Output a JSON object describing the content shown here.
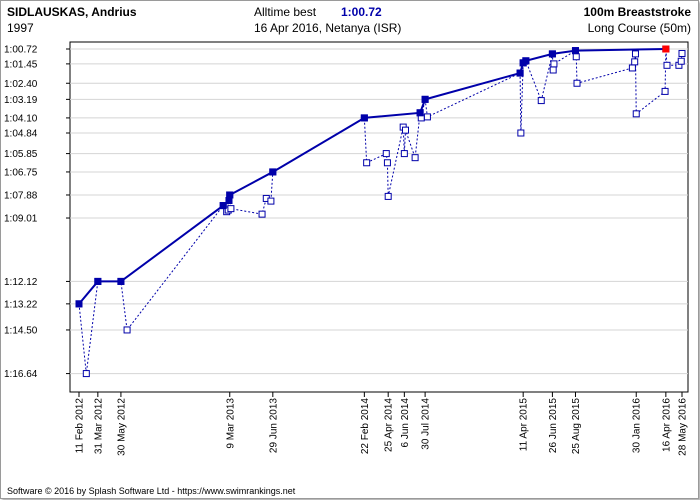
{
  "header": {
    "swimmer": "SIDLAUSKAS, Andrius",
    "birth_year": "1997",
    "alltime_label": "Alltime best",
    "alltime_value": "1:00.72",
    "alltime_meet": "16 Apr 2016,  Netanya (ISR)",
    "event": "100m Breaststroke",
    "course": "Long Course (50m)"
  },
  "footer": {
    "credit": "Software © 2016 by Splash Software Ltd  -  https://www.swimrankings.net"
  },
  "colors": {
    "best_line": "#0000aa",
    "swims": "#0000aa",
    "alltime_marker": "#ff0000",
    "grid": "#d4d4d4"
  },
  "chart_data": {
    "type": "line",
    "title": "",
    "xlabel": "",
    "ylabel": "",
    "y_reversed": true,
    "ylim": [
      60.72,
      77.2
    ],
    "xlim": [
      "2012-02-11",
      "2016-05-28"
    ],
    "grid": "horizontal",
    "y_ticks": [
      "1:00.72",
      "1:01.45",
      "1:02.40",
      "1:03.19",
      "1:04.10",
      "1:04.84",
      "1:05.85",
      "1:06.75",
      "1:07.88",
      "1:09.01",
      "1:12.12",
      "1:13.22",
      "1:14.50",
      "1:16.64"
    ],
    "x_ticks": [
      {
        "date": "2012-02-11",
        "label": "11 Feb 2012"
      },
      {
        "date": "2012-03-31",
        "label": "31 Mar 2012"
      },
      {
        "date": "2012-05-30",
        "label": "30 May 2012"
      },
      {
        "date": "2013-03-09",
        "label": "9 Mar 2013"
      },
      {
        "date": "2013-06-29",
        "label": "29 Jun 2013"
      },
      {
        "date": "2014-02-22",
        "label": "22 Feb 2014"
      },
      {
        "date": "2014-04-25",
        "label": "25 Apr 2014"
      },
      {
        "date": "2014-06-06",
        "label": "6 Jun 2014"
      },
      {
        "date": "2014-07-30",
        "label": "30 Jul 2014"
      },
      {
        "date": "2015-04-11",
        "label": "11 Apr 2015"
      },
      {
        "date": "2015-06-26",
        "label": "26 Jun 2015"
      },
      {
        "date": "2015-08-25",
        "label": "25 Aug 2015"
      },
      {
        "date": "2016-01-30",
        "label": "30 Jan 2016"
      },
      {
        "date": "2016-04-16",
        "label": "16 Apr 2016"
      },
      {
        "date": "2016-05-28",
        "label": "28 May 2016"
      }
    ],
    "personal_best": [
      {
        "date": "2012-02-11",
        "time": 73.22
      },
      {
        "date": "2012-03-31",
        "time": 72.12
      },
      {
        "date": "2012-05-30",
        "time": 72.12
      },
      {
        "date": "2013-02-20",
        "time": 68.4
      },
      {
        "date": "2013-03-07",
        "time": 68.15
      },
      {
        "date": "2013-03-09",
        "time": 67.88
      },
      {
        "date": "2013-06-29",
        "time": 66.75
      },
      {
        "date": "2014-02-22",
        "time": 64.1
      },
      {
        "date": "2014-07-17",
        "time": 63.85
      },
      {
        "date": "2014-07-30",
        "time": 63.19
      },
      {
        "date": "2015-04-03",
        "time": 61.9
      },
      {
        "date": "2015-04-11",
        "time": 61.4
      },
      {
        "date": "2015-04-18",
        "time": 61.3
      },
      {
        "date": "2015-06-26",
        "time": 60.96
      },
      {
        "date": "2015-08-25",
        "time": 60.8
      },
      {
        "date": "2016-04-16",
        "time": 60.72
      }
    ],
    "all_swims": [
      {
        "date": "2012-02-11",
        "time": 73.22
      },
      {
        "date": "2012-03-01",
        "time": 76.64
      },
      {
        "date": "2012-03-31",
        "time": 72.12
      },
      {
        "date": "2012-05-30",
        "time": 72.12
      },
      {
        "date": "2012-06-15",
        "time": 74.5
      },
      {
        "date": "2013-02-20",
        "time": 68.4
      },
      {
        "date": "2013-03-07",
        "time": 68.15
      },
      {
        "date": "2013-03-01",
        "time": 68.7
      },
      {
        "date": "2013-03-05",
        "time": 68.62
      },
      {
        "date": "2013-03-09",
        "time": 67.88
      },
      {
        "date": "2013-03-12",
        "time": 68.55
      },
      {
        "date": "2013-06-01",
        "time": 68.82
      },
      {
        "date": "2013-06-12",
        "time": 68.05
      },
      {
        "date": "2013-06-24",
        "time": 68.18
      },
      {
        "date": "2013-06-29",
        "time": 66.75
      },
      {
        "date": "2014-02-22",
        "time": 64.1
      },
      {
        "date": "2014-02-28",
        "time": 66.3
      },
      {
        "date": "2014-04-20",
        "time": 65.85
      },
      {
        "date": "2014-04-23",
        "time": 66.3
      },
      {
        "date": "2014-04-25",
        "time": 67.95
      },
      {
        "date": "2014-06-03",
        "time": 64.55
      },
      {
        "date": "2014-06-06",
        "time": 65.85
      },
      {
        "date": "2014-06-09",
        "time": 64.7
      },
      {
        "date": "2014-07-04",
        "time": 66.05
      },
      {
        "date": "2014-07-17",
        "time": 63.85
      },
      {
        "date": "2014-07-20",
        "time": 64.1
      },
      {
        "date": "2014-07-30",
        "time": 63.19
      },
      {
        "date": "2014-08-05",
        "time": 64.05
      },
      {
        "date": "2015-04-03",
        "time": 61.9
      },
      {
        "date": "2015-04-05",
        "time": 64.84
      },
      {
        "date": "2015-04-11",
        "time": 61.4
      },
      {
        "date": "2015-04-18",
        "time": 61.3
      },
      {
        "date": "2015-05-28",
        "time": 63.25
      },
      {
        "date": "2015-06-26",
        "time": 60.96
      },
      {
        "date": "2015-06-28",
        "time": 61.75
      },
      {
        "date": "2015-06-30",
        "time": 61.45
      },
      {
        "date": "2015-08-25",
        "time": 60.8
      },
      {
        "date": "2015-08-27",
        "time": 61.1
      },
      {
        "date": "2015-08-29",
        "time": 62.4
      },
      {
        "date": "2016-01-20",
        "time": 61.65
      },
      {
        "date": "2016-01-26",
        "time": 61.35
      },
      {
        "date": "2016-01-28",
        "time": 60.96
      },
      {
        "date": "2016-01-30",
        "time": 63.9
      },
      {
        "date": "2016-04-14",
        "time": 62.8
      },
      {
        "date": "2016-04-16",
        "time": 60.72
      },
      {
        "date": "2016-04-19",
        "time": 61.52
      },
      {
        "date": "2016-05-20",
        "time": 61.52
      },
      {
        "date": "2016-05-26",
        "time": 61.32
      },
      {
        "date": "2016-05-28",
        "time": 60.94
      }
    ]
  }
}
